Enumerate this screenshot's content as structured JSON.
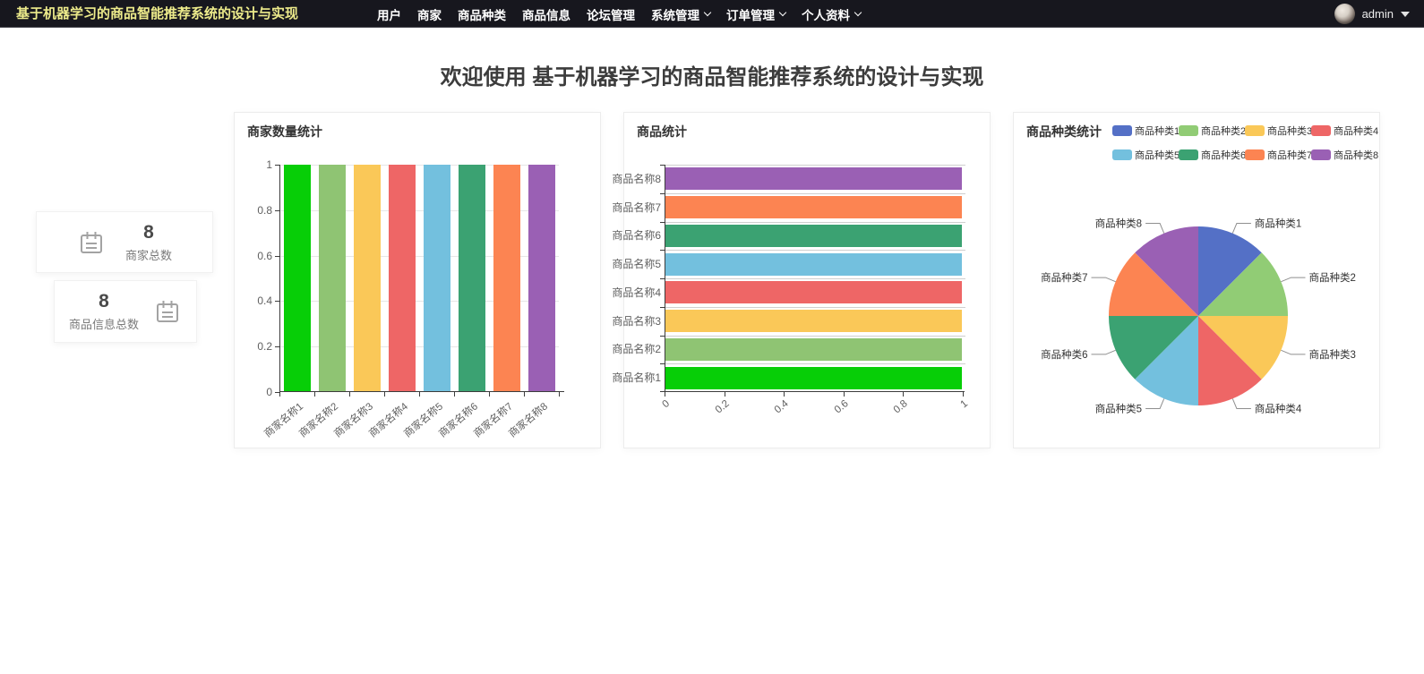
{
  "navbar": {
    "title": "基于机器学习的商品智能推荐系统的设计与实现",
    "menu": [
      {
        "label": "用户",
        "dropdown": false
      },
      {
        "label": "商家",
        "dropdown": false
      },
      {
        "label": "商品种类",
        "dropdown": false
      },
      {
        "label": "商品信息",
        "dropdown": false
      },
      {
        "label": "论坛管理",
        "dropdown": false
      },
      {
        "label": "系统管理",
        "dropdown": true
      },
      {
        "label": "订单管理",
        "dropdown": true
      },
      {
        "label": "个人资料",
        "dropdown": true
      }
    ],
    "user": {
      "name": "admin"
    },
    "colors": {
      "background": "#17171E",
      "title_text": "#EDEB8B",
      "menu_text": "#FFFFFF"
    }
  },
  "heading": "欢迎使用 基于机器学习的商品智能推荐系统的设计与实现",
  "stats": [
    {
      "value": "8",
      "label": "商家总数",
      "icon": "notebook-icon",
      "icon_side": "left"
    },
    {
      "value": "8",
      "label": "商品信息总数",
      "icon": "notebook-icon",
      "icon_side": "right"
    }
  ],
  "chart_data": [
    {
      "type": "bar",
      "orientation": "vertical",
      "title": "商家数量统计",
      "categories": [
        "商家名称1",
        "商家名称2",
        "商家名称3",
        "商家名称4",
        "商家名称5",
        "商家名称6",
        "商家名称7",
        "商家名称8"
      ],
      "values": [
        1,
        1,
        1,
        1,
        1,
        1,
        1,
        1
      ],
      "ylim": [
        0,
        1
      ],
      "yticks": [
        "0",
        "0.2",
        "0.4",
        "0.6",
        "0.8",
        "1"
      ],
      "colors": [
        "#07CE07",
        "#8FC473",
        "#FAC858",
        "#EE6666",
        "#73C0DE",
        "#3BA272",
        "#FC8452",
        "#9A60B4"
      ],
      "grid": true,
      "xlabel": "",
      "ylabel": ""
    },
    {
      "type": "bar",
      "orientation": "horizontal",
      "title": "商品统计",
      "categories": [
        "商品名称1",
        "商品名称2",
        "商品名称3",
        "商品名称4",
        "商品名称5",
        "商品名称6",
        "商品名称7",
        "商品名称8"
      ],
      "values": [
        1,
        1,
        1,
        1,
        1,
        1,
        1,
        1
      ],
      "xlim": [
        0,
        1
      ],
      "xticks": [
        "0",
        "0.2",
        "0.4",
        "0.6",
        "0.8",
        "1"
      ],
      "colors": [
        "#07CE07",
        "#8FC473",
        "#FAC858",
        "#EE6666",
        "#73C0DE",
        "#3BA272",
        "#FC8452",
        "#9A60B4"
      ],
      "grid": true,
      "xlabel": "",
      "ylabel": ""
    },
    {
      "type": "pie",
      "title": "商品种类统计",
      "labels": [
        "商品种类1",
        "商品种类2",
        "商品种类3",
        "商品种类4",
        "商品种类5",
        "商品种类6",
        "商品种类7",
        "商品种类8"
      ],
      "values": [
        1,
        1,
        1,
        1,
        1,
        1,
        1,
        1
      ],
      "colors": [
        "#5470C6",
        "#91CC75",
        "#FAC858",
        "#EE6666",
        "#73C0DE",
        "#3BA272",
        "#FC8452",
        "#9A60B4"
      ],
      "legend_position": "top-right"
    }
  ]
}
